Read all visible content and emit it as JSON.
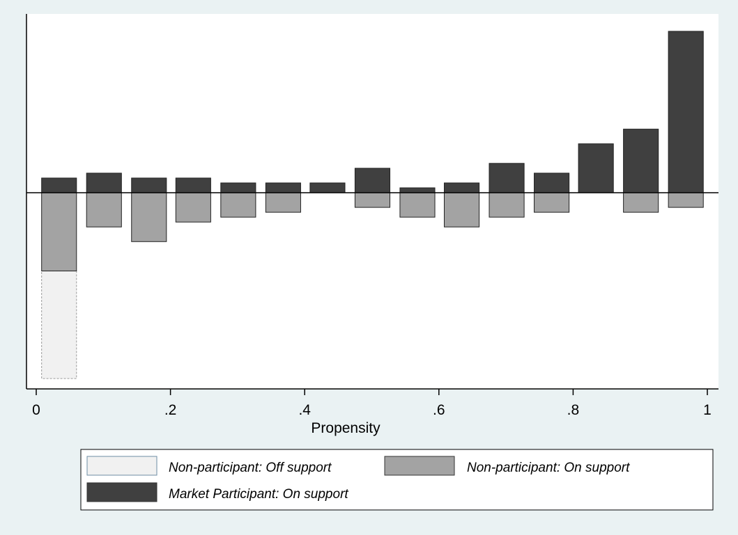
{
  "chart_data": {
    "type": "bar",
    "title": "",
    "xlabel": "Propensity",
    "ylabel": "",
    "xlim": [
      0,
      1
    ],
    "x_ticks": [
      {
        "value": 0,
        "label": "0"
      },
      {
        "value": 0.2,
        "label": ".2"
      },
      {
        "value": 0.4,
        "label": ".4"
      },
      {
        "value": 0.6,
        "label": ".6"
      },
      {
        "value": 0.8,
        "label": ".8"
      },
      {
        "value": 1,
        "label": "1"
      }
    ],
    "bin_width": 0.0667,
    "bin_centers": [
      0.034,
      0.101,
      0.168,
      0.234,
      0.301,
      0.368,
      0.434,
      0.501,
      0.568,
      0.634,
      0.701,
      0.768,
      0.834,
      0.901,
      0.968
    ],
    "ylim": [
      -38,
      33
    ],
    "grid": false,
    "legend_position": "bottom",
    "series": [
      {
        "name": "Market Participant: On support",
        "color": "#404040",
        "direction": "up",
        "values": [
          3,
          4,
          3,
          3,
          2,
          2,
          2,
          5,
          1,
          2,
          6,
          4,
          10,
          13,
          33
        ]
      },
      {
        "name": "Non-participant: On support",
        "color": "#a3a3a3",
        "direction": "down",
        "values": [
          16,
          7,
          10,
          6,
          5,
          4,
          0,
          3,
          5,
          7,
          5,
          4,
          0,
          4,
          3
        ]
      },
      {
        "name": "Non-participant: Off support",
        "color": "#f1f1f1",
        "direction": "down",
        "values": [
          22,
          0,
          0,
          0,
          0,
          0,
          0,
          0,
          0,
          0,
          0,
          0,
          0,
          0,
          0
        ]
      }
    ],
    "legend": [
      {
        "label": "Non-participant: Off support",
        "color": "#f1f1f1",
        "border": "#6d8da4"
      },
      {
        "label": "Non-participant: On support",
        "color": "#a3a3a3",
        "border": "#333333"
      },
      {
        "label": "Market Participant: On support",
        "color": "#404040",
        "border": "#333333"
      }
    ]
  }
}
